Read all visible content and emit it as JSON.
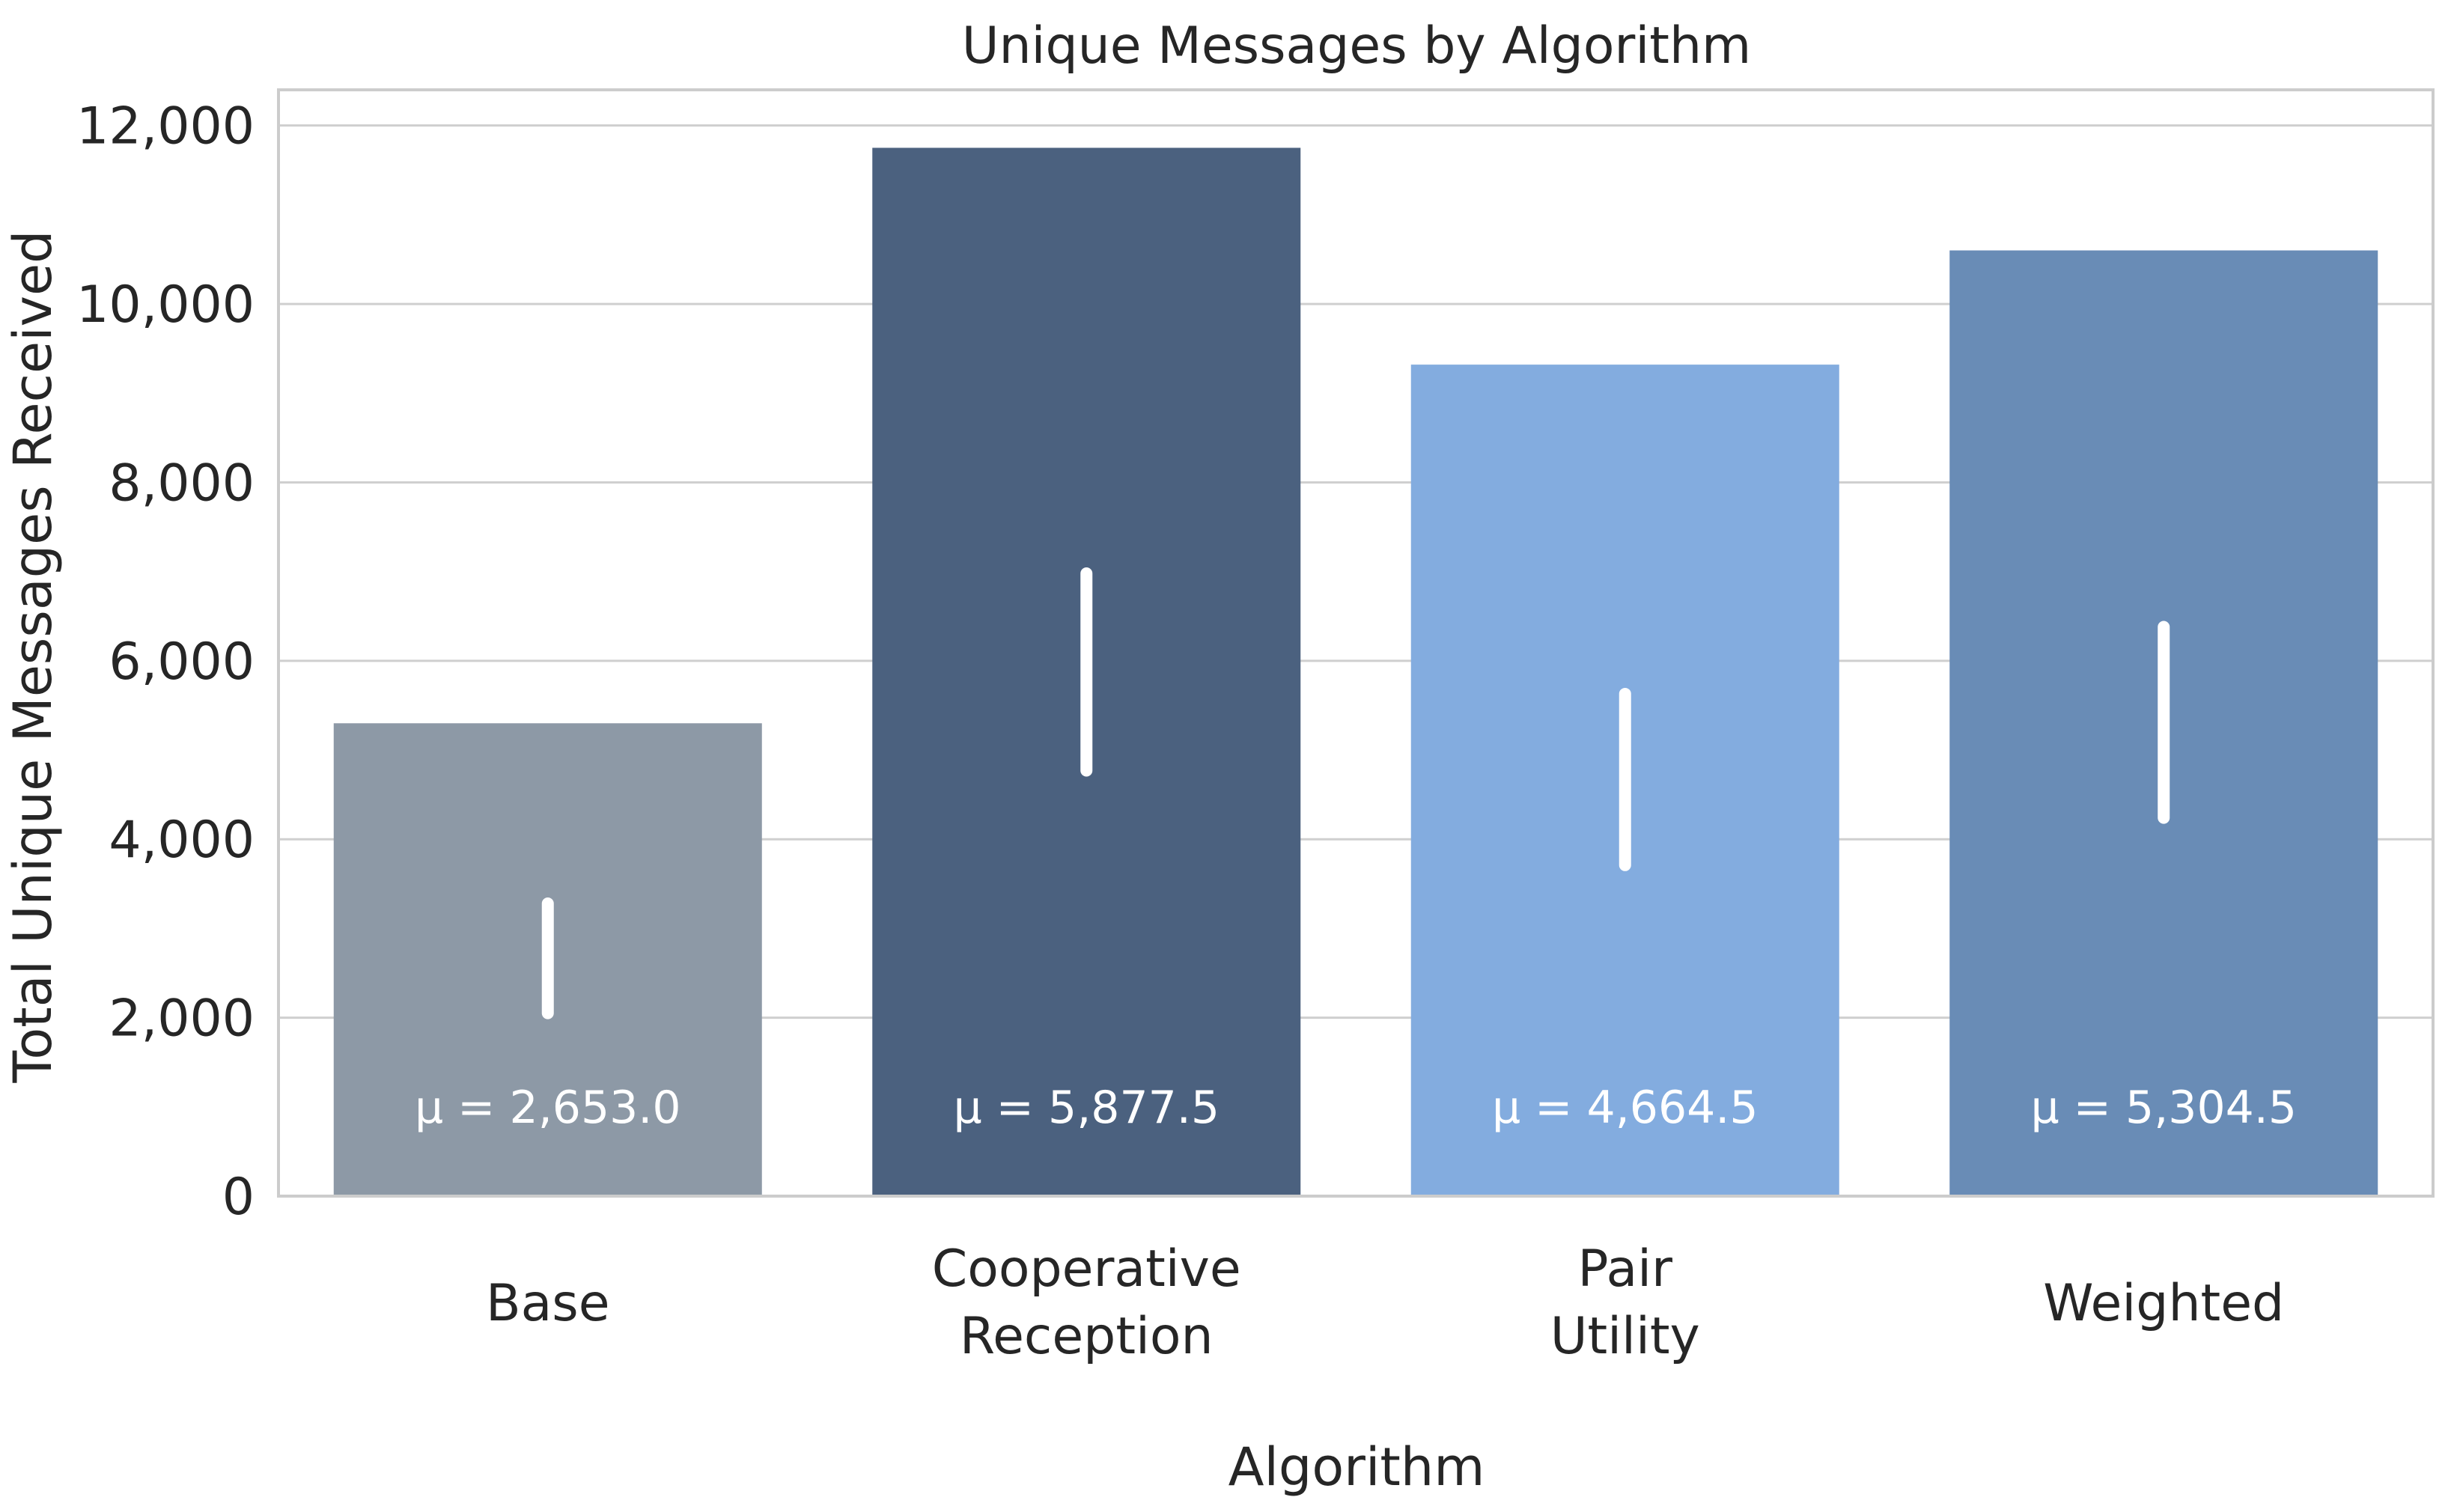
{
  "chart_data": {
    "type": "bar",
    "title": "Unique Messages by Algorithm",
    "xlabel": "Algorithm",
    "ylabel": "Total Unique Messages Received",
    "ylim": [
      0,
      12400
    ],
    "yticks": [
      0,
      2000,
      4000,
      6000,
      8000,
      10000,
      12000
    ],
    "ytick_labels": [
      "0",
      "2,000",
      "4,000",
      "6,000",
      "8,000",
      "10,000",
      "12,000"
    ],
    "grid": true,
    "categories": [
      [
        "Base"
      ],
      [
        "Cooperative",
        "Reception"
      ],
      [
        "Pair",
        "Utility"
      ],
      [
        "Weighted"
      ]
    ],
    "values": [
      5300,
      11750,
      9320,
      10600
    ],
    "colors": [
      "#8d99a6",
      "#4b617f",
      "#83acdf",
      "#698cb6"
    ],
    "error_bars": [
      [
        2050,
        3280
      ],
      [
        4770,
        6980
      ],
      [
        3710,
        5630
      ],
      [
        4240,
        6380
      ]
    ],
    "mean_labels": [
      "μ = 2,653.0",
      "μ = 5,877.5",
      "μ = 4,664.5",
      "μ = 5,304.5"
    ]
  }
}
